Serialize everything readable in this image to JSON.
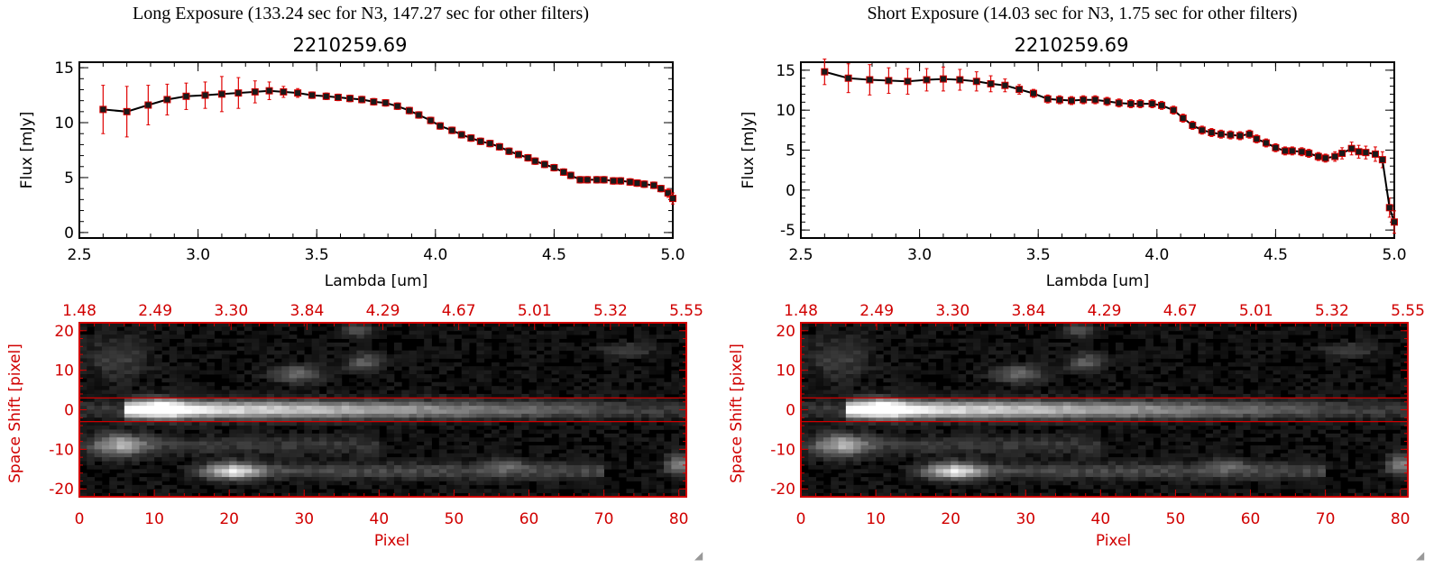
{
  "colors": {
    "error_bar": "#e00000",
    "line": "#000000",
    "marker": "#d00000",
    "image_axes": "#d00000",
    "background": "#ffffff"
  },
  "panels": [
    {
      "title": "Long Exposure (133.24 sec for N3, 147.27 sec for other filters)",
      "subtitle": "2210259.69"
    },
    {
      "title": "Short Exposure (14.03 sec for N3, 1.75 sec for other filters)",
      "subtitle": "2210259.69"
    }
  ],
  "chart_data": [
    {
      "type": "line",
      "title": "2210259.69",
      "xlabel": "Lambda [um]",
      "ylabel": "Flux [mJy]",
      "xlim": [
        2.5,
        5.0
      ],
      "ylim": [
        -0.5,
        15.5
      ],
      "xticks": [
        "2.5",
        "3.0",
        "3.5",
        "4.0",
        "4.5",
        "5.0"
      ],
      "xtick_values": [
        2.5,
        3.0,
        3.5,
        4.0,
        4.5,
        5.0
      ],
      "yticks": [
        "0",
        "5",
        "10",
        "15"
      ],
      "ytick_values": [
        0,
        5,
        10,
        15
      ],
      "x": [
        2.6,
        2.7,
        2.79,
        2.87,
        2.95,
        3.03,
        3.1,
        3.17,
        3.24,
        3.3,
        3.36,
        3.42,
        3.48,
        3.54,
        3.59,
        3.64,
        3.69,
        3.74,
        3.79,
        3.84,
        3.89,
        3.93,
        3.98,
        4.02,
        4.07,
        4.11,
        4.15,
        4.19,
        4.23,
        4.27,
        4.31,
        4.35,
        4.39,
        4.42,
        4.46,
        4.5,
        4.54,
        4.57,
        4.61,
        4.64,
        4.68,
        4.71,
        4.75,
        4.78,
        4.82,
        4.85,
        4.88,
        4.92,
        4.95,
        4.98,
        5.0
      ],
      "y": [
        11.2,
        11.0,
        11.6,
        12.1,
        12.4,
        12.5,
        12.6,
        12.7,
        12.8,
        12.9,
        12.8,
        12.7,
        12.5,
        12.4,
        12.3,
        12.2,
        12.1,
        11.9,
        11.8,
        11.5,
        11.1,
        10.7,
        10.2,
        9.7,
        9.3,
        8.9,
        8.6,
        8.3,
        8.1,
        7.8,
        7.4,
        7.1,
        6.8,
        6.5,
        6.2,
        5.9,
        5.5,
        5.2,
        4.8,
        4.8,
        4.8,
        4.8,
        4.7,
        4.7,
        4.6,
        4.5,
        4.4,
        4.3,
        4.0,
        3.6,
        3.1
      ],
      "yerr": [
        2.2,
        2.3,
        1.8,
        1.4,
        1.2,
        1.2,
        1.6,
        1.4,
        1.0,
        0.8,
        0.5,
        0.4,
        0.3,
        0.3,
        0.3,
        0.3,
        0.3,
        0.3,
        0.3,
        0.3,
        0.3,
        0.3,
        0.3,
        0.3,
        0.3,
        0.3,
        0.3,
        0.3,
        0.3,
        0.3,
        0.3,
        0.3,
        0.3,
        0.3,
        0.3,
        0.3,
        0.3,
        0.3,
        0.3,
        0.3,
        0.3,
        0.3,
        0.3,
        0.3,
        0.3,
        0.3,
        0.3,
        0.3,
        0.3,
        0.4,
        0.5
      ]
    },
    {
      "type": "line",
      "title": "2210259.69",
      "xlabel": "Lambda [um]",
      "ylabel": "Flux [mJy]",
      "xlim": [
        2.5,
        5.0
      ],
      "ylim": [
        -6.0,
        16.0
      ],
      "xticks": [
        "2.5",
        "3.0",
        "3.5",
        "4.0",
        "4.5",
        "5.0"
      ],
      "xtick_values": [
        2.5,
        3.0,
        3.5,
        4.0,
        4.5,
        5.0
      ],
      "yticks": [
        "-5",
        "0",
        "5",
        "10",
        "15"
      ],
      "ytick_values": [
        -5,
        0,
        5,
        10,
        15
      ],
      "x": [
        2.6,
        2.7,
        2.79,
        2.87,
        2.95,
        3.03,
        3.1,
        3.17,
        3.24,
        3.3,
        3.36,
        3.42,
        3.48,
        3.54,
        3.59,
        3.64,
        3.69,
        3.74,
        3.79,
        3.84,
        3.89,
        3.93,
        3.98,
        4.02,
        4.07,
        4.11,
        4.15,
        4.19,
        4.23,
        4.27,
        4.31,
        4.35,
        4.39,
        4.42,
        4.46,
        4.5,
        4.54,
        4.57,
        4.61,
        4.64,
        4.68,
        4.71,
        4.75,
        4.78,
        4.82,
        4.85,
        4.88,
        4.92,
        4.95,
        4.98,
        5.0
      ],
      "y": [
        14.8,
        14.0,
        13.8,
        13.7,
        13.6,
        13.8,
        13.9,
        13.8,
        13.6,
        13.3,
        13.1,
        12.6,
        12.1,
        11.4,
        11.3,
        11.2,
        11.3,
        11.3,
        11.1,
        10.9,
        10.8,
        10.8,
        10.8,
        10.6,
        10.0,
        9.0,
        8.1,
        7.5,
        7.2,
        7.0,
        6.9,
        6.8,
        7.0,
        6.4,
        5.9,
        5.3,
        4.9,
        4.9,
        4.8,
        4.6,
        4.2,
        4.0,
        4.2,
        4.6,
        5.2,
        4.8,
        4.7,
        4.5,
        3.8,
        -2.2,
        -4.0
      ],
      "yerr": [
        1.6,
        1.8,
        1.9,
        1.6,
        1.6,
        1.4,
        1.5,
        1.3,
        1.2,
        1.0,
        0.8,
        0.6,
        0.5,
        0.5,
        0.5,
        0.5,
        0.5,
        0.5,
        0.5,
        0.5,
        0.5,
        0.5,
        0.5,
        0.5,
        0.5,
        0.5,
        0.5,
        0.5,
        0.5,
        0.5,
        0.5,
        0.5,
        0.5,
        0.5,
        0.5,
        0.5,
        0.5,
        0.5,
        0.5,
        0.5,
        0.5,
        0.5,
        0.6,
        0.7,
        0.8,
        0.8,
        0.8,
        0.9,
        1.0,
        1.2,
        1.4
      ]
    },
    {
      "type": "heatmap",
      "xlabel": "Pixel",
      "ylabel": "Space Shift [pixel]",
      "xlim": [
        0,
        81
      ],
      "ylim": [
        -22,
        22
      ],
      "xticks": [
        "0",
        "10",
        "20",
        "30",
        "40",
        "50",
        "60",
        "70",
        "80"
      ],
      "xtick_values": [
        0,
        10,
        20,
        30,
        40,
        50,
        60,
        70,
        80
      ],
      "yticks": [
        "20",
        "10",
        "0",
        "-10",
        "-20"
      ],
      "ytick_values": [
        20,
        10,
        0,
        -10,
        -20
      ],
      "top_ticks": [
        "1.48",
        "2.49",
        "3.30",
        "3.84",
        "4.29",
        "4.67",
        "5.01",
        "5.32",
        "5.55"
      ],
      "aperture": [
        -3,
        3
      ]
    },
    {
      "type": "heatmap",
      "xlabel": "Pixel",
      "ylabel": "Space Shift [pixel]",
      "xlim": [
        0,
        81
      ],
      "ylim": [
        -22,
        22
      ],
      "xticks": [
        "0",
        "10",
        "20",
        "30",
        "40",
        "50",
        "60",
        "70",
        "80"
      ],
      "xtick_values": [
        0,
        10,
        20,
        30,
        40,
        50,
        60,
        70,
        80
      ],
      "yticks": [
        "20",
        "10",
        "0",
        "-10",
        "-20"
      ],
      "ytick_values": [
        20,
        10,
        0,
        -10,
        -20
      ],
      "top_ticks": [
        "1.48",
        "2.49",
        "3.30",
        "3.84",
        "4.29",
        "4.67",
        "5.01",
        "5.32",
        "5.55"
      ],
      "aperture": [
        -3,
        3
      ]
    }
  ]
}
